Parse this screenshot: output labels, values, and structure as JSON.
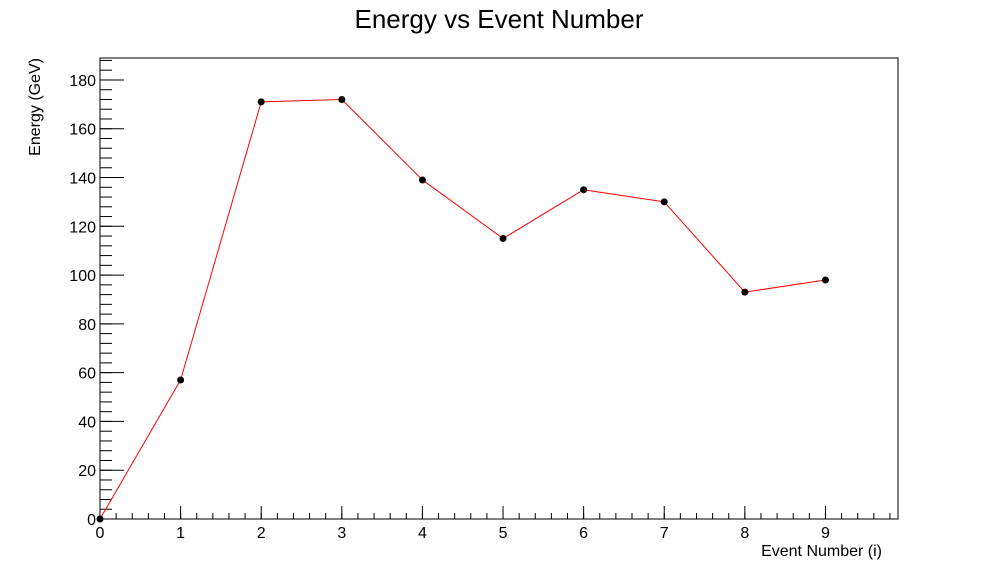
{
  "chart_data": {
    "type": "line",
    "title": "Energy vs Event Number",
    "xlabel": "Event Number (i)",
    "ylabel": "Energy (GeV)",
    "xlim": [
      0,
      9.9
    ],
    "ylim": [
      0,
      189
    ],
    "x_ticks": [
      "0",
      "1",
      "2",
      "3",
      "4",
      "5",
      "6",
      "7",
      "8",
      "9"
    ],
    "y_ticks": [
      "0",
      "20",
      "40",
      "60",
      "80",
      "100",
      "120",
      "140",
      "160",
      "180"
    ],
    "grid": false,
    "legend": "none",
    "series": [
      {
        "x": [
          0,
          1,
          2,
          3,
          4,
          5,
          6,
          7,
          8,
          9
        ],
        "y": [
          0,
          57,
          171,
          172,
          139,
          115,
          135,
          130,
          93,
          98
        ],
        "line_color": "#ff0000",
        "marker_color": "#000000"
      }
    ]
  }
}
